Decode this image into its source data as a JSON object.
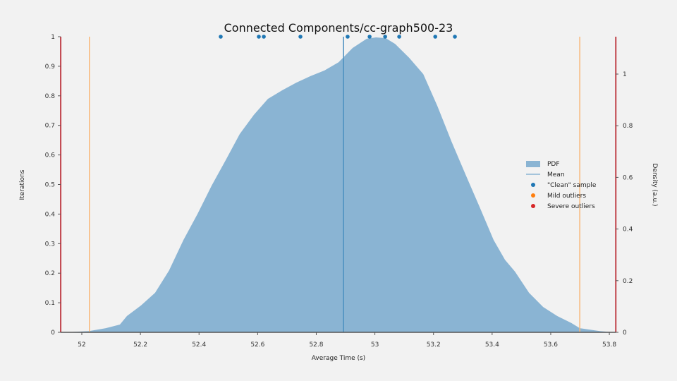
{
  "chart_data": {
    "type": "area",
    "title": "Connected Components/cc-graph500-23",
    "xlabel": "Average Time (s)",
    "ylabel_left": "Iterations",
    "ylabel_right": "Density (a.u.)",
    "xlim": [
      51.928,
      53.822
    ],
    "ylim_left": [
      0,
      1
    ],
    "ylim_right": [
      0,
      1.16
    ],
    "x_ticks": [
      "52",
      "52.2",
      "52.4",
      "52.6",
      "52.8",
      "53",
      "53.2",
      "53.4",
      "53.6",
      "53.8"
    ],
    "y_left_ticks": [
      "0",
      "0.1",
      "0.2",
      "0.3",
      "0.4",
      "0.5",
      "0.6",
      "0.7",
      "0.8",
      "0.9",
      "1"
    ],
    "y_right_ticks": [
      "0",
      "0.2",
      "0.4",
      "0.6",
      "0.8",
      "1"
    ],
    "grid": false,
    "legend_position": "right",
    "legend": [
      {
        "label": "PDF",
        "kind": "patch",
        "color": "#8ab4d3"
      },
      {
        "label": "Mean",
        "kind": "line",
        "color": "#8ab4d3"
      },
      {
        "label": "\"Clean\" sample",
        "kind": "dot",
        "color": "#1f77b4"
      },
      {
        "label": "Mild outliers",
        "kind": "dot",
        "color": "#ff7f0e"
      },
      {
        "label": "Severe outliers",
        "kind": "dot",
        "color": "#d62728"
      }
    ],
    "pdf": {
      "x": [
        51.928,
        51.961,
        52.026,
        52.082,
        52.13,
        52.154,
        52.202,
        52.25,
        52.298,
        52.347,
        52.395,
        52.443,
        52.491,
        52.539,
        52.587,
        52.635,
        52.683,
        52.732,
        52.78,
        52.828,
        52.876,
        52.924,
        52.972,
        53.004,
        53.037,
        53.069,
        53.117,
        53.165,
        53.213,
        53.261,
        53.309,
        53.357,
        53.405,
        53.444,
        53.478,
        53.526,
        53.574,
        53.622,
        53.67,
        53.699,
        53.767,
        53.815
      ],
      "density": [
        0,
        0.001,
        0.005,
        0.016,
        0.03,
        0.063,
        0.104,
        0.153,
        0.24,
        0.358,
        0.459,
        0.568,
        0.667,
        0.768,
        0.842,
        0.904,
        0.937,
        0.967,
        0.992,
        1.014,
        1.046,
        1.101,
        1.137,
        1.142,
        1.139,
        1.117,
        1.063,
        1.0,
        0.877,
        0.74,
        0.612,
        0.486,
        0.358,
        0.281,
        0.235,
        0.153,
        0.098,
        0.063,
        0.036,
        0.016,
        0.005,
        0
      ]
    },
    "mean": 52.893,
    "clean_samples": {
      "x": [
        52.474,
        52.604,
        52.621,
        52.746,
        52.907,
        52.982,
        53.035,
        53.083,
        53.206,
        53.273
      ],
      "iterations": [
        1,
        1,
        1,
        1,
        1,
        1,
        1,
        1,
        1,
        1
      ]
    },
    "mild_outlier_bounds": [
      52.026,
      53.699
    ],
    "severe_outlier_bounds": [
      51.928,
      53.822
    ],
    "colors": {
      "pdf_fill": "#8ab4d3",
      "mean_line": "#4a8fc0",
      "clean_dot": "#1f77b4",
      "mild_line": "#f8b87a",
      "severe_line": "#c0434b",
      "axis": "#555555"
    }
  }
}
